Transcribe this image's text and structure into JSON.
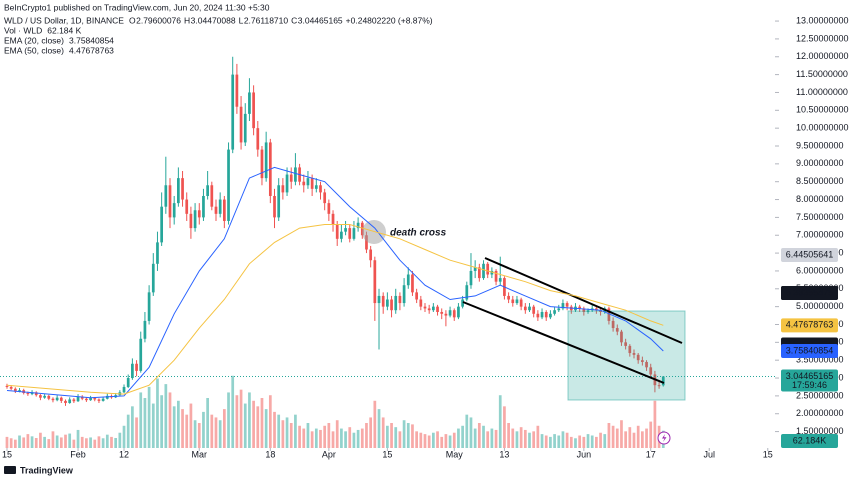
{
  "header": "BeInCrypto1 published on TradingView.com, Jun 20, 2024 11:30 +5:30",
  "brand": "TradingView",
  "chart_data": {
    "type": "candlestick",
    "symbol": "WLD / US Dollar, 1D, BINANCE",
    "ohlc": [
      {
        "key": "O",
        "value": "2.79600076"
      },
      {
        "key": "H",
        "value": "3.04470088"
      },
      {
        "key": "L",
        "value": "2.76118710"
      },
      {
        "key": "C",
        "value": "3.04465165"
      }
    ],
    "change": "+0.24802220 (+8.87%)",
    "indicators": [
      {
        "name": "Vol · WLD",
        "value": "62.184 K",
        "color": "#26a69a"
      },
      {
        "name": "EMA (20, close)",
        "value": "3.75840854",
        "color": "#2962ff"
      },
      {
        "name": "EMA (50, close)",
        "value": "4.47678763",
        "color": "#f5c342"
      }
    ],
    "annotation": "death cross",
    "up_color": "#26a69a",
    "down_color": "#ef5350",
    "xlim": [
      -1.67,
      183.73
    ],
    "xticks": [
      {
        "value": 0,
        "label": "15"
      },
      {
        "value": 17,
        "label": "Feb"
      },
      {
        "value": 28,
        "label": "12"
      },
      {
        "value": 46,
        "label": "Mar"
      },
      {
        "value": 63,
        "label": "18"
      },
      {
        "value": 77,
        "label": "Apr"
      },
      {
        "value": 91,
        "label": "15"
      },
      {
        "value": 107,
        "label": "May"
      },
      {
        "value": 119,
        "label": "13"
      },
      {
        "value": 138,
        "label": "Jun"
      },
      {
        "value": 154,
        "label": "17"
      },
      {
        "value": 168,
        "label": "Jul"
      },
      {
        "value": 182,
        "label": "15"
      }
    ],
    "ylim": [
      1.04,
      13.59
    ],
    "yticks": [
      {
        "value": 1.5,
        "label": "1.50000000"
      },
      {
        "value": 2.0,
        "label": "2.00000000"
      },
      {
        "value": 2.5,
        "label": "2.50000000"
      },
      {
        "value": 3.0,
        "label": "3.00000000"
      },
      {
        "value": 3.5,
        "label": "3.50000000"
      },
      {
        "value": 4.0,
        "label": "4.00000000"
      },
      {
        "value": 4.5,
        "label": "4.50000000"
      },
      {
        "value": 5.0,
        "label": "5.00000000"
      },
      {
        "value": 5.5,
        "label": "5.50000000"
      },
      {
        "value": 6.0,
        "label": "6.00000000"
      },
      {
        "value": 6.5,
        "label": "6.50000000"
      },
      {
        "value": 7.0,
        "label": "7.00000000"
      },
      {
        "value": 7.5,
        "label": "7.50000000"
      },
      {
        "value": 8.0,
        "label": "8.00000000"
      },
      {
        "value": 8.5,
        "label": "8.50000000"
      },
      {
        "value": 9.0,
        "label": "9.00000000"
      },
      {
        "value": 9.5,
        "label": "9.50000000"
      },
      {
        "value": 10.0,
        "label": "10.00000000"
      },
      {
        "value": 10.5,
        "label": "10.50000000"
      },
      {
        "value": 11.0,
        "label": "11.00000000"
      },
      {
        "value": 11.5,
        "label": "11.50000000"
      },
      {
        "value": 12.0,
        "label": "12.00000000"
      },
      {
        "value": 12.5,
        "label": "12.50000000"
      },
      {
        "value": 13.0,
        "label": "13.00000000"
      }
    ],
    "grid": false,
    "candles": [
      [
        2.78,
        2.84,
        2.7,
        2.75
      ],
      [
        2.75,
        2.8,
        2.66,
        2.7
      ],
      [
        2.7,
        2.74,
        2.58,
        2.62
      ],
      [
        2.62,
        2.72,
        2.6,
        2.66
      ],
      [
        2.66,
        2.7,
        2.54,
        2.58
      ],
      [
        2.58,
        2.62,
        2.5,
        2.55
      ],
      [
        2.55,
        2.66,
        2.52,
        2.6
      ],
      [
        2.6,
        2.63,
        2.48,
        2.52
      ],
      [
        2.52,
        2.55,
        2.38,
        2.45
      ],
      [
        2.45,
        2.56,
        2.42,
        2.5
      ],
      [
        2.5,
        2.53,
        2.38,
        2.42
      ],
      [
        2.42,
        2.46,
        2.32,
        2.38
      ],
      [
        2.38,
        2.52,
        2.35,
        2.45
      ],
      [
        2.45,
        2.48,
        2.3,
        2.36
      ],
      [
        2.36,
        2.4,
        2.22,
        2.3
      ],
      [
        2.3,
        2.46,
        2.28,
        2.4
      ],
      [
        2.4,
        2.44,
        2.3,
        2.35
      ],
      [
        2.35,
        2.55,
        2.33,
        2.48
      ],
      [
        2.48,
        2.52,
        2.38,
        2.42
      ],
      [
        2.42,
        2.46,
        2.33,
        2.38
      ],
      [
        2.38,
        2.5,
        2.36,
        2.44
      ],
      [
        2.44,
        2.47,
        2.35,
        2.4
      ],
      [
        2.4,
        2.43,
        2.3,
        2.36
      ],
      [
        2.36,
        2.48,
        2.34,
        2.42
      ],
      [
        2.42,
        2.56,
        2.4,
        2.5
      ],
      [
        2.5,
        2.54,
        2.42,
        2.46
      ],
      [
        2.46,
        2.58,
        2.44,
        2.52
      ],
      [
        2.52,
        2.66,
        2.5,
        2.6
      ],
      [
        2.6,
        2.82,
        2.58,
        2.75
      ],
      [
        2.75,
        3.1,
        2.72,
        3.0
      ],
      [
        3.0,
        3.55,
        2.95,
        3.4
      ],
      [
        3.4,
        3.5,
        3.05,
        3.2
      ],
      [
        3.2,
        4.3,
        3.15,
        4.1
      ],
      [
        4.1,
        4.85,
        4.0,
        4.6
      ],
      [
        4.6,
        5.6,
        4.5,
        5.4
      ],
      [
        5.4,
        6.5,
        5.3,
        6.2
      ],
      [
        6.2,
        7.1,
        6.0,
        6.8
      ],
      [
        6.8,
        8.2,
        6.7,
        7.8
      ],
      [
        7.8,
        9.2,
        7.6,
        8.4
      ],
      [
        8.4,
        8.6,
        7.2,
        7.5
      ],
      [
        7.5,
        8.1,
        7.3,
        7.9
      ],
      [
        7.9,
        8.9,
        7.8,
        8.6
      ],
      [
        8.6,
        8.8,
        7.8,
        8.0
      ],
      [
        8.0,
        8.2,
        7.4,
        7.6
      ],
      [
        7.6,
        7.8,
        6.9,
        7.2
      ],
      [
        7.2,
        7.9,
        7.1,
        7.7
      ],
      [
        7.7,
        7.9,
        7.3,
        7.5
      ],
      [
        7.5,
        8.3,
        7.4,
        8.1
      ],
      [
        8.1,
        8.8,
        8.0,
        8.4
      ],
      [
        8.4,
        8.5,
        7.7,
        7.8
      ],
      [
        7.8,
        8.0,
        7.4,
        7.6
      ],
      [
        7.6,
        8.2,
        7.5,
        8.0
      ],
      [
        8.0,
        8.1,
        7.2,
        7.4
      ],
      [
        7.4,
        9.6,
        7.3,
        9.4
      ],
      [
        9.4,
        12.0,
        9.3,
        11.5
      ],
      [
        11.5,
        11.8,
        10.4,
        10.6
      ],
      [
        10.6,
        10.9,
        9.4,
        9.6
      ],
      [
        9.6,
        10.7,
        9.5,
        10.4
      ],
      [
        10.4,
        11.4,
        10.2,
        11.0
      ],
      [
        11.0,
        11.2,
        9.8,
        10.0
      ],
      [
        10.0,
        10.2,
        9.2,
        9.4
      ],
      [
        9.4,
        9.5,
        8.4,
        8.6
      ],
      [
        8.6,
        9.9,
        8.5,
        9.6
      ],
      [
        9.6,
        9.7,
        7.9,
        8.1
      ],
      [
        8.1,
        8.3,
        7.2,
        7.5
      ],
      [
        7.5,
        8.6,
        7.4,
        8.4
      ],
      [
        8.4,
        8.6,
        8.0,
        8.2
      ],
      [
        8.2,
        8.9,
        8.1,
        8.7
      ],
      [
        8.7,
        8.9,
        8.3,
        8.5
      ],
      [
        8.5,
        9.3,
        8.4,
        8.9
      ],
      [
        8.9,
        9.0,
        8.4,
        8.5
      ],
      [
        8.5,
        8.7,
        8.2,
        8.4
      ],
      [
        8.4,
        8.8,
        8.3,
        8.6
      ],
      [
        8.6,
        8.7,
        8.1,
        8.3
      ],
      [
        8.3,
        8.6,
        8.2,
        8.4
      ],
      [
        8.4,
        8.5,
        8.0,
        8.2
      ],
      [
        8.2,
        8.3,
        7.7,
        7.9
      ],
      [
        7.9,
        8.0,
        7.4,
        7.6
      ],
      [
        7.6,
        7.7,
        7.1,
        7.3
      ],
      [
        7.3,
        7.4,
        6.7,
        6.9
      ],
      [
        6.9,
        7.3,
        6.8,
        7.1
      ],
      [
        7.1,
        7.4,
        7.0,
        7.2
      ],
      [
        7.2,
        7.3,
        6.8,
        6.9
      ],
      [
        6.9,
        7.4,
        6.85,
        7.2
      ],
      [
        7.2,
        7.5,
        7.1,
        7.35
      ],
      [
        7.35,
        7.4,
        6.9,
        7.0
      ],
      [
        7.0,
        7.1,
        6.5,
        6.6
      ],
      [
        6.6,
        6.7,
        6.1,
        6.3
      ],
      [
        6.3,
        6.4,
        4.6,
        5.1
      ],
      [
        5.1,
        5.5,
        3.8,
        5.3
      ],
      [
        5.3,
        5.4,
        4.8,
        5.0
      ],
      [
        5.0,
        5.4,
        4.9,
        5.2
      ],
      [
        5.2,
        5.3,
        4.7,
        4.9
      ],
      [
        4.9,
        5.5,
        4.8,
        5.3
      ],
      [
        5.3,
        5.4,
        4.9,
        5.1
      ],
      [
        5.1,
        5.8,
        5.0,
        5.6
      ],
      [
        5.6,
        6.1,
        5.5,
        5.9
      ],
      [
        5.9,
        6.0,
        5.3,
        5.4
      ],
      [
        5.4,
        5.5,
        5.1,
        5.2
      ],
      [
        5.2,
        5.3,
        4.9,
        5.0
      ],
      [
        5.0,
        5.1,
        4.85,
        4.95
      ],
      [
        4.95,
        5.05,
        4.8,
        4.9
      ],
      [
        4.9,
        5.1,
        4.85,
        5.0
      ],
      [
        5.0,
        5.05,
        4.75,
        4.85
      ],
      [
        4.85,
        4.95,
        4.65,
        4.8
      ],
      [
        4.8,
        4.9,
        4.45,
        4.75
      ],
      [
        4.75,
        5.0,
        4.7,
        4.9
      ],
      [
        4.9,
        4.95,
        4.6,
        4.7
      ],
      [
        4.7,
        5.1,
        4.65,
        5.0
      ],
      [
        5.0,
        5.3,
        4.95,
        5.2
      ],
      [
        5.2,
        5.7,
        5.15,
        5.6
      ],
      [
        5.6,
        6.5,
        5.5,
        6.0
      ],
      [
        6.0,
        6.3,
        5.8,
        6.1
      ],
      [
        6.1,
        6.2,
        5.7,
        5.8
      ],
      [
        5.8,
        6.3,
        5.75,
        6.2
      ],
      [
        6.2,
        6.25,
        5.8,
        5.9
      ],
      [
        5.9,
        6.1,
        5.8,
        6.0
      ],
      [
        6.0,
        6.05,
        5.6,
        5.7
      ],
      [
        5.7,
        6.4,
        5.6,
        5.8
      ],
      [
        5.8,
        5.85,
        5.2,
        5.3
      ],
      [
        5.3,
        5.4,
        5.1,
        5.2
      ],
      [
        5.2,
        5.3,
        5.0,
        5.1
      ],
      [
        5.1,
        5.3,
        5.05,
        5.2
      ],
      [
        5.2,
        5.25,
        4.9,
        5.0
      ],
      [
        5.0,
        5.1,
        4.8,
        4.9
      ],
      [
        4.9,
        5.1,
        4.85,
        5.0
      ],
      [
        5.0,
        5.05,
        4.7,
        4.8
      ],
      [
        4.8,
        4.9,
        4.6,
        4.7
      ],
      [
        4.7,
        4.95,
        4.65,
        4.85
      ],
      [
        4.85,
        4.9,
        4.6,
        4.7
      ],
      [
        4.7,
        4.9,
        4.65,
        4.8
      ],
      [
        4.8,
        5.0,
        4.75,
        4.9
      ],
      [
        4.9,
        5.05,
        4.85,
        4.95
      ],
      [
        4.95,
        5.2,
        4.9,
        5.1
      ],
      [
        5.1,
        5.15,
        4.9,
        5.0
      ],
      [
        5.0,
        5.05,
        4.8,
        4.9
      ],
      [
        4.9,
        5.1,
        4.85,
        5.0
      ],
      [
        5.0,
        5.05,
        4.85,
        4.95
      ],
      [
        4.95,
        5.0,
        4.75,
        4.85
      ],
      [
        4.85,
        4.95,
        4.8,
        4.9
      ],
      [
        4.9,
        5.05,
        4.85,
        4.95
      ],
      [
        4.95,
        5.0,
        4.8,
        4.9
      ],
      [
        4.9,
        4.95,
        4.75,
        4.85
      ],
      [
        4.85,
        5.0,
        4.8,
        4.95
      ],
      [
        4.95,
        5.0,
        4.5,
        4.6
      ],
      [
        4.6,
        4.7,
        4.3,
        4.4
      ],
      [
        4.4,
        4.5,
        4.2,
        4.3
      ],
      [
        4.3,
        4.35,
        3.9,
        4.0
      ],
      [
        4.0,
        4.1,
        3.8,
        3.9
      ],
      [
        3.9,
        3.95,
        3.6,
        3.7
      ],
      [
        3.7,
        3.8,
        3.55,
        3.65
      ],
      [
        3.65,
        3.7,
        3.4,
        3.5
      ],
      [
        3.5,
        3.6,
        3.35,
        3.45
      ],
      [
        3.45,
        3.5,
        3.2,
        3.3
      ],
      [
        3.3,
        3.4,
        3.0,
        3.1
      ],
      [
        3.1,
        3.2,
        2.6,
        2.8
      ],
      [
        2.8,
        2.95,
        2.7,
        2.79600076
      ],
      [
        2.79600076,
        3.04470088,
        2.7611871,
        3.04465165
      ]
    ],
    "vlim": [
      0,
      270
    ],
    "volume": [
      40,
      35,
      30,
      45,
      38,
      50,
      42,
      36,
      55,
      40,
      32,
      60,
      45,
      38,
      48,
      52,
      30,
      65,
      40,
      35,
      38,
      30,
      42,
      35,
      48,
      40,
      36,
      55,
      80,
      120,
      150,
      110,
      200,
      180,
      220,
      160,
      250,
      190,
      230,
      200,
      150,
      170,
      140,
      120,
      160,
      100,
      90,
      130,
      180,
      120,
      110,
      100,
      140,
      200,
      260,
      190,
      210,
      160,
      200,
      170,
      150,
      180,
      140,
      190,
      130,
      120,
      100,
      110,
      90,
      120,
      80,
      70,
      90,
      60,
      70,
      65,
      80,
      90,
      60,
      100,
      70,
      60,
      75,
      55,
      65,
      70,
      90,
      110,
      170,
      140,
      110,
      80,
      90,
      75,
      60,
      100,
      90,
      85,
      60,
      55,
      50,
      45,
      55,
      60,
      40,
      50,
      45,
      55,
      70,
      80,
      120,
      110,
      70,
      90,
      80,
      60,
      70,
      65,
      190,
      150,
      90,
      70,
      60,
      75,
      65,
      55,
      60,
      80,
      50,
      45,
      40,
      50,
      45,
      60,
      55,
      40,
      35,
      45,
      40,
      50,
      45,
      40,
      55,
      50,
      90,
      80,
      70,
      100,
      60,
      75,
      55,
      80,
      60,
      70,
      95,
      170,
      80,
      62.184
    ],
    "series": [
      {
        "name": "EMA (20, close)",
        "color": "#2962ff",
        "x": [
          0,
          10,
          20,
          28,
          34,
          40,
          46,
          52,
          58,
          64,
          70,
          76,
          82,
          88,
          94,
          100,
          106,
          112,
          118,
          124,
          130,
          136,
          142,
          148,
          154,
          157
        ],
        "values": [
          2.65,
          2.55,
          2.45,
          2.5,
          3.3,
          4.8,
          6.0,
          6.9,
          8.6,
          8.9,
          8.7,
          8.5,
          7.8,
          7.2,
          6.3,
          5.6,
          5.2,
          5.3,
          5.6,
          5.3,
          5.0,
          4.95,
          4.9,
          4.6,
          4.1,
          3.75840854
        ]
      },
      {
        "name": "EMA (50, close)",
        "color": "#f5c342",
        "x": [
          0,
          10,
          20,
          28,
          34,
          40,
          46,
          52,
          58,
          64,
          70,
          76,
          82,
          88,
          94,
          100,
          106,
          112,
          118,
          124,
          130,
          136,
          142,
          148,
          154,
          157
        ],
        "values": [
          2.8,
          2.7,
          2.6,
          2.55,
          2.8,
          3.5,
          4.4,
          5.2,
          6.2,
          6.8,
          7.2,
          7.3,
          7.3,
          7.1,
          6.9,
          6.6,
          6.3,
          6.1,
          5.9,
          5.7,
          5.45,
          5.3,
          5.1,
          4.9,
          4.6,
          4.47678763
        ]
      }
    ],
    "price_labels": [
      {
        "value": 6.44505641,
        "label": "6.44505641",
        "color": "#d1d4dc",
        "text_color": "#131722"
      },
      {
        "value": 5.38355475,
        "label": "5.38355475",
        "color": "#131722",
        "text_color": "#ffffff"
      },
      {
        "value": 5.38355475,
        "label": "5.38355475",
        "color": "#131722",
        "text_color": "#ffffff"
      },
      {
        "value": 4.47678763,
        "label": "4.47678763",
        "color": "#f5c342",
        "text_color": "#131722"
      },
      {
        "value": 3.94002831,
        "label": "3.94002831",
        "color": "#131722",
        "text_color": "#ffffff"
      },
      {
        "value": 3.75840854,
        "label": "3.75840854",
        "color": "#2962ff",
        "text_color": "#ffffff"
      },
      {
        "value": 3.04465165,
        "label": "3.04465165",
        "color": "#26a69a",
        "text_color": "#ffffff"
      }
    ],
    "countdown": "17:59:46",
    "volume_label": {
      "value": 62.184,
      "label": "62.184K"
    }
  }
}
